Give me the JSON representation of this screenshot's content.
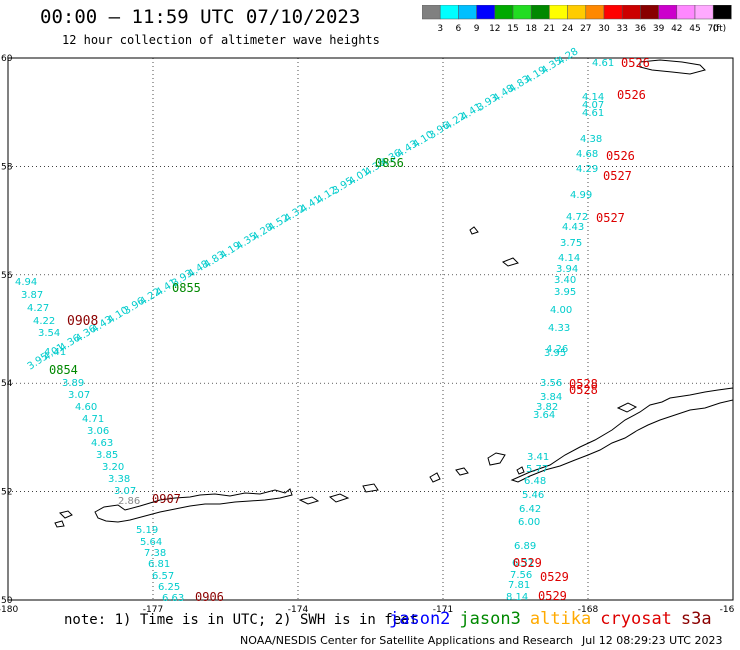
{
  "header": {
    "title": "00:00 – 11:59 UTC 07/10/2023",
    "subtitle": "12 hour collection of altimeter wave heights"
  },
  "colorbar": {
    "labels": [
      "3",
      "6",
      "9",
      "12",
      "15",
      "18",
      "21",
      "24",
      "27",
      "30",
      "33",
      "36",
      "39",
      "42",
      "45",
      "70"
    ],
    "unit": "(ft)",
    "colors": [
      "#808080",
      "#00ffff",
      "#00bfff",
      "#0000ff",
      "#00aa00",
      "#22dd22",
      "#008800",
      "#ffff00",
      "#ffcc00",
      "#ff8800",
      "#ff0000",
      "#cc0000",
      "#880000",
      "#cc00cc",
      "#ff88ff",
      "#ffaaff",
      "#000000"
    ]
  },
  "axes": {
    "lon_ticks": [
      "-180",
      "-177",
      "-174",
      "-171",
      "-168",
      "-16"
    ],
    "lat_ticks": [
      "60",
      "58",
      "56",
      "54",
      "52",
      "50"
    ]
  },
  "passes": [
    {
      "label": "0908",
      "color": "#8b0000"
    },
    {
      "label": "0907",
      "color": "#8b0000"
    },
    {
      "label": "0906",
      "color": "#8b0000"
    },
    {
      "label": "0855",
      "color": "#008800"
    },
    {
      "label": "0856",
      "color": "#008800"
    },
    {
      "label": "0854",
      "color": "#008800"
    },
    {
      "label": "0526",
      "color": "#dd0000"
    },
    {
      "label": "0526",
      "color": "#dd0000"
    },
    {
      "label": "0526",
      "color": "#dd0000"
    },
    {
      "label": "0527",
      "color": "#dd0000"
    },
    {
      "label": "0527",
      "color": "#dd0000"
    },
    {
      "label": "0528",
      "color": "#dd0000"
    },
    {
      "label": "0529",
      "color": "#dd0000"
    },
    {
      "label": "0529",
      "color": "#dd0000"
    },
    {
      "label": "0529",
      "color": "#dd0000"
    }
  ],
  "west_track_values": [
    "4.94",
    "3.87",
    "4.27",
    "4.22",
    "3.54",
    "4.41",
    "3.89",
    "3.07",
    "4.60",
    "4.71",
    "3.06",
    "4.63",
    "3.85",
    "3.20",
    "3.38",
    "3.07",
    "2.86",
    "5.19",
    "5.64",
    "7.38",
    "6.81",
    "6.57",
    "6.25",
    "6.63"
  ],
  "east_track_values": [
    "4.61",
    "4.14",
    "4.07",
    "4.61",
    "4.38",
    "4.68",
    "4.29",
    "4.99",
    "4.72",
    "4.43",
    "3.75",
    "4.14",
    "3.94",
    "3.40",
    "3.95",
    "4.00",
    "4.33",
    "3.95",
    "4.26",
    "3.56",
    "3.84",
    "3.82",
    "3.64",
    "3.41",
    "5.77",
    "6.48",
    "5.46",
    "6.42",
    "6.00",
    "6.89",
    "6.31",
    "7.56",
    "7.81",
    "8.14"
  ],
  "diag_track_values": [
    "3.95",
    "4.01",
    "4.36",
    "4.36",
    "4.43",
    "4.10",
    "3.96",
    "4.22",
    "4.41",
    "3.93",
    "4.48",
    "4.83",
    "4.19",
    "4.35",
    "4.28",
    "4.52",
    "4.32",
    "4.41",
    "4.12"
  ],
  "footer": {
    "note": "note: 1) Time is in UTC; 2) SWH is in feet",
    "satellites": [
      {
        "name": "jason2",
        "color": "#0000ff"
      },
      {
        "name": "jason3",
        "color": "#008800"
      },
      {
        "name": "altika",
        "color": "#ffaa00"
      },
      {
        "name": "cryosat",
        "color": "#dd0000"
      },
      {
        "name": "s3a",
        "color": "#8b0000"
      }
    ],
    "credit": "NOAA/NESDIS Center for Satellite Applications and Research",
    "timestamp": "Jul 12 08:29:23 UTC 2023"
  }
}
